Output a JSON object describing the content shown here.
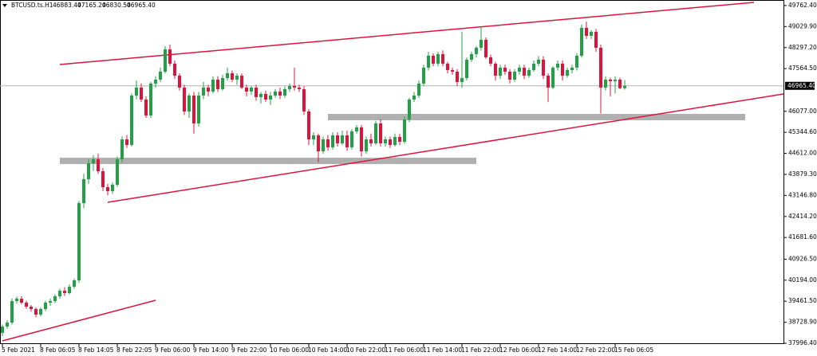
{
  "chart_data": {
    "type": "candlestick",
    "symbol": "BTCUSD.ts.H1",
    "header_ohlc": [
      {
        "value": 46883.4,
        "label": "46883.40"
      },
      {
        "value": 47165.2,
        "label": "47165.20"
      },
      {
        "value": 46830.5,
        "label": "46830.50"
      },
      {
        "value": 46965.4,
        "label": "46965.40"
      }
    ],
    "last_price": {
      "value": 46965.4,
      "label": "46965.40"
    },
    "up_color": "#22a046",
    "down_color": "#dc143c",
    "grid": false,
    "ylim": [
      37970,
      49955
    ],
    "yticks": [
      {
        "value": 49762.4,
        "label": "49762.40"
      },
      {
        "value": 49029.9,
        "label": "49029.90"
      },
      {
        "value": 48297.2,
        "label": "48297.20"
      },
      {
        "value": 47564.5,
        "label": "47564.50"
      },
      {
        "value": 46077,
        "label": "46077.00"
      },
      {
        "value": 45344.6,
        "label": "45344.60"
      },
      {
        "value": 44612,
        "label": "44612.00"
      },
      {
        "value": 43879.3,
        "label": "43879.30"
      },
      {
        "value": 43146.8,
        "label": "43146.80"
      },
      {
        "value": 42414.2,
        "label": "42414.20"
      },
      {
        "value": 41681.6,
        "label": "41681.60"
      },
      {
        "value": 40926.5,
        "label": "40926.50"
      },
      {
        "value": 40194,
        "label": "40194.00"
      },
      {
        "value": 39461.5,
        "label": "39461.50"
      },
      {
        "value": 38728.9,
        "label": "38728.90"
      },
      {
        "value": 37996.4,
        "label": "37996.40"
      }
    ],
    "categories": [
      "5 Feb 2021",
      null,
      null,
      null,
      null,
      null,
      null,
      null,
      "8 Feb 06:05",
      null,
      null,
      null,
      null,
      null,
      null,
      null,
      "8 Feb 14:05",
      null,
      null,
      null,
      null,
      null,
      null,
      null,
      "8 Feb 22:05",
      null,
      null,
      null,
      null,
      null,
      null,
      null,
      "9 Feb 06:00",
      null,
      null,
      null,
      null,
      null,
      null,
      null,
      "9 Feb 14:00",
      null,
      null,
      null,
      null,
      null,
      null,
      null,
      "9 Feb 22:00",
      null,
      null,
      null,
      null,
      null,
      null,
      null,
      "10 Feb 06:00",
      null,
      null,
      null,
      null,
      null,
      null,
      null,
      "10 Feb 14:00",
      null,
      null,
      null,
      null,
      null,
      null,
      null,
      "10 Feb 22:00",
      null,
      null,
      null,
      null,
      null,
      null,
      null,
      "11 Feb 06:00",
      null,
      null,
      null,
      null,
      null,
      null,
      null,
      "11 Feb 14:00",
      null,
      null,
      null,
      null,
      null,
      null,
      null,
      "11 Feb 22:00",
      null,
      null,
      null,
      null,
      null,
      null,
      null,
      "12 Feb 06:00",
      null,
      null,
      null,
      null,
      null,
      null,
      null,
      "12 Feb 14:00",
      null,
      null,
      null,
      null,
      null,
      null,
      null,
      "12 Feb 22:00",
      null,
      null,
      null,
      null,
      null,
      null,
      null,
      "15 Feb 06:05",
      null,
      null
    ],
    "ohlc": [
      [
        38358,
        38650,
        38250,
        38580
      ],
      [
        38580,
        38800,
        38500,
        38718
      ],
      [
        38718,
        39560,
        38650,
        39467
      ],
      [
        39467,
        39620,
        39380,
        39550
      ],
      [
        39550,
        39640,
        39350,
        39412
      ],
      [
        39412,
        39480,
        39200,
        39273
      ],
      [
        39273,
        39330,
        39100,
        39190
      ],
      [
        39190,
        39250,
        38900,
        38996
      ],
      [
        38996,
        39250,
        38930,
        39190
      ],
      [
        39190,
        39480,
        39120,
        39412
      ],
      [
        39412,
        39560,
        39300,
        39467
      ],
      [
        39467,
        39700,
        39400,
        39634
      ],
      [
        39634,
        39900,
        39550,
        39828
      ],
      [
        39828,
        39950,
        39650,
        39745
      ],
      [
        39745,
        40050,
        39700,
        39967
      ],
      [
        39967,
        40250,
        39900,
        40189
      ],
      [
        40189,
        42950,
        40100,
        42880
      ],
      [
        42880,
        43900,
        42700,
        43713
      ],
      [
        43713,
        44400,
        43550,
        44268
      ],
      [
        44268,
        44550,
        44000,
        44406
      ],
      [
        44406,
        44600,
        43900,
        43990
      ],
      [
        43990,
        44100,
        43300,
        43435
      ],
      [
        43435,
        43550,
        43150,
        43297
      ],
      [
        43297,
        43600,
        43200,
        43520
      ],
      [
        43520,
        44500,
        43450,
        44406
      ],
      [
        44406,
        45200,
        44300,
        45100
      ],
      [
        45100,
        45250,
        44800,
        44906
      ],
      [
        44906,
        46700,
        44850,
        46627
      ],
      [
        46627,
        47150,
        46500,
        46904
      ],
      [
        46904,
        47050,
        46400,
        46488
      ],
      [
        46488,
        46600,
        45850,
        45933
      ],
      [
        45933,
        47100,
        45850,
        47043
      ],
      [
        47043,
        47300,
        46900,
        47182
      ],
      [
        47182,
        47600,
        47100,
        47459
      ],
      [
        47459,
        48350,
        47400,
        48236
      ],
      [
        48236,
        48400,
        47650,
        47737
      ],
      [
        47737,
        47850,
        47200,
        47320
      ],
      [
        47320,
        47400,
        46800,
        46904
      ],
      [
        46904,
        47000,
        45950,
        46072
      ],
      [
        46072,
        46700,
        45850,
        46627
      ],
      [
        46627,
        46750,
        45300,
        45655
      ],
      [
        45655,
        46750,
        45550,
        46627
      ],
      [
        46627,
        47100,
        46500,
        46904
      ],
      [
        46904,
        47000,
        46600,
        46766
      ],
      [
        46766,
        47300,
        46700,
        47182
      ],
      [
        47182,
        47300,
        46750,
        46849
      ],
      [
        46849,
        47350,
        46800,
        47237
      ],
      [
        47237,
        47600,
        47150,
        47404
      ],
      [
        47404,
        47500,
        47100,
        47182
      ],
      [
        47182,
        47400,
        47000,
        47320
      ],
      [
        47320,
        47400,
        46850,
        46904
      ],
      [
        46904,
        47000,
        46600,
        46766
      ],
      [
        46766,
        46950,
        46650,
        46904
      ],
      [
        46904,
        47000,
        46450,
        46572
      ],
      [
        46572,
        46750,
        46350,
        46682
      ],
      [
        46682,
        46800,
        46400,
        46488
      ],
      [
        46488,
        46750,
        46300,
        46627
      ],
      [
        46627,
        46850,
        46550,
        46766
      ],
      [
        46766,
        46900,
        46500,
        46627
      ],
      [
        46627,
        46950,
        46550,
        46849
      ],
      [
        46849,
        47050,
        46750,
        46960
      ],
      [
        46960,
        47600,
        46800,
        46904
      ],
      [
        46904,
        47000,
        46750,
        46849
      ],
      [
        46849,
        46950,
        45950,
        46072
      ],
      [
        46072,
        46150,
        44900,
        45100
      ],
      [
        45100,
        45350,
        44900,
        45239
      ],
      [
        45239,
        45300,
        44300,
        44684
      ],
      [
        44684,
        45200,
        44600,
        45100
      ],
      [
        45100,
        45250,
        44700,
        44823
      ],
      [
        44823,
        45350,
        44750,
        45239
      ],
      [
        45239,
        45350,
        44850,
        44962
      ],
      [
        44962,
        45400,
        44900,
        45239
      ],
      [
        45239,
        45400,
        44700,
        44823
      ],
      [
        44823,
        45450,
        44750,
        45378
      ],
      [
        45378,
        45600,
        45300,
        45517
      ],
      [
        45517,
        45600,
        44500,
        44684
      ],
      [
        44684,
        45200,
        44600,
        45100
      ],
      [
        45100,
        45300,
        44850,
        44962
      ],
      [
        44962,
        45750,
        44900,
        45655
      ],
      [
        45655,
        45800,
        44850,
        44962
      ],
      [
        44962,
        45200,
        44850,
        45100
      ],
      [
        45100,
        45200,
        44800,
        44906
      ],
      [
        44906,
        45300,
        44850,
        45184
      ],
      [
        45184,
        45300,
        44900,
        45017
      ],
      [
        45017,
        45900,
        44950,
        45794
      ],
      [
        45794,
        46550,
        45700,
        46488
      ],
      [
        46488,
        46750,
        46400,
        46627
      ],
      [
        46627,
        47150,
        46550,
        47043
      ],
      [
        47043,
        47700,
        46950,
        47598
      ],
      [
        47598,
        48150,
        47500,
        48014
      ],
      [
        48014,
        48100,
        47650,
        47737
      ],
      [
        47737,
        48150,
        47650,
        48070
      ],
      [
        48070,
        48200,
        47650,
        47737
      ],
      [
        47737,
        47800,
        47400,
        47515
      ],
      [
        47515,
        47600,
        47350,
        47459
      ],
      [
        47459,
        47550,
        46950,
        47098
      ],
      [
        47098,
        48850,
        46900,
        47237
      ],
      [
        47237,
        47950,
        47150,
        47875
      ],
      [
        47875,
        48150,
        47800,
        48070
      ],
      [
        48070,
        48350,
        47950,
        48292
      ],
      [
        48292,
        48990,
        48200,
        48569
      ],
      [
        48569,
        48650,
        47900,
        47959
      ],
      [
        47959,
        48050,
        47650,
        47737
      ],
      [
        47737,
        47800,
        47150,
        47320
      ],
      [
        47320,
        47700,
        47200,
        47598
      ],
      [
        47598,
        47700,
        47350,
        47459
      ],
      [
        47459,
        47550,
        47050,
        47182
      ],
      [
        47182,
        47550,
        47100,
        47459
      ],
      [
        47459,
        47700,
        47350,
        47598
      ],
      [
        47598,
        47700,
        47200,
        47320
      ],
      [
        47320,
        47600,
        47250,
        47515
      ],
      [
        47515,
        47850,
        47450,
        47737
      ],
      [
        47737,
        48000,
        47650,
        47875
      ],
      [
        47875,
        48000,
        47200,
        47320
      ],
      [
        47320,
        47400,
        46400,
        46904
      ],
      [
        46904,
        47650,
        46850,
        47598
      ],
      [
        47598,
        47850,
        47500,
        47737
      ],
      [
        47737,
        47850,
        47150,
        47320
      ],
      [
        47320,
        47600,
        47250,
        47515
      ],
      [
        47515,
        47700,
        47400,
        47598
      ],
      [
        47598,
        48100,
        47500,
        48014
      ],
      [
        48014,
        49100,
        47950,
        48985
      ],
      [
        48985,
        49200,
        48600,
        48708
      ],
      [
        48708,
        48900,
        48600,
        48847
      ],
      [
        48847,
        48950,
        48150,
        48292
      ],
      [
        48292,
        48400,
        46000,
        46904
      ],
      [
        46904,
        47300,
        46800,
        47182
      ],
      [
        47182,
        47250,
        46600,
        47126
      ],
      [
        47126,
        47300,
        46700,
        47182
      ],
      [
        47182,
        47250,
        46850,
        46883.4
      ],
      [
        46883.4,
        47165.2,
        46830.5,
        46965.4
      ]
    ]
  }
}
